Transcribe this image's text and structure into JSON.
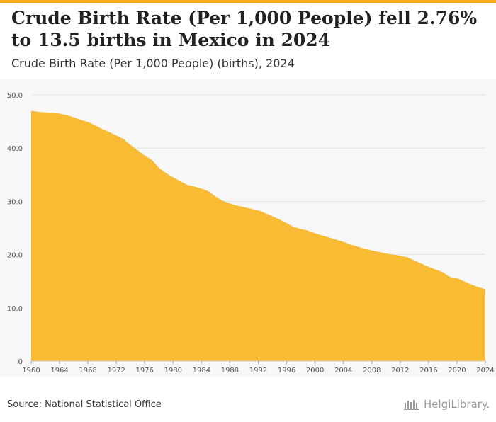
{
  "header": {
    "title": "Crude Birth Rate (Per 1,000 People) fell 2.76% to 13.5 births in Mexico in 2024",
    "subtitle": "Crude Birth Rate (Per 1,000 People) (births), 2024"
  },
  "footer": {
    "source": "Source: National Statistical Office",
    "logo_text": "HelgiLibrary."
  },
  "colors": {
    "accent": "#f5a623",
    "area_fill": "#f9bb33",
    "plot_background": "#f8f8f8",
    "grid": "#e4e4e4"
  },
  "chart_data": {
    "type": "area",
    "title": "Crude Birth Rate (Per 1,000 People) (births), 2024",
    "xlabel": "",
    "ylabel": "",
    "ylim": [
      0,
      50
    ],
    "xlim": [
      1960,
      2024
    ],
    "grid": true,
    "legend": "none",
    "y_ticks": [
      "0",
      "10.0",
      "20.0",
      "30.0",
      "40.0",
      "50.0"
    ],
    "x_ticks": [
      "1960",
      "1964",
      "1968",
      "1972",
      "1976",
      "1980",
      "1984",
      "1988",
      "1992",
      "1996",
      "2000",
      "2004",
      "2008",
      "2012",
      "2016",
      "2020",
      "2024"
    ],
    "x": [
      1960,
      1961,
      1962,
      1963,
      1964,
      1965,
      1966,
      1967,
      1968,
      1969,
      1970,
      1971,
      1972,
      1973,
      1974,
      1975,
      1976,
      1977,
      1978,
      1979,
      1980,
      1981,
      1982,
      1983,
      1984,
      1985,
      1986,
      1987,
      1988,
      1989,
      1990,
      1991,
      1992,
      1993,
      1994,
      1995,
      1996,
      1997,
      1998,
      1999,
      2000,
      2001,
      2002,
      2003,
      2004,
      2005,
      2006,
      2007,
      2008,
      2009,
      2010,
      2011,
      2012,
      2013,
      2014,
      2015,
      2016,
      2017,
      2018,
      2019,
      2020,
      2021,
      2022,
      2023,
      2024
    ],
    "values": [
      47.0,
      46.8,
      46.7,
      46.6,
      46.5,
      46.2,
      45.8,
      45.3,
      44.9,
      44.3,
      43.6,
      43.0,
      42.4,
      41.7,
      40.6,
      39.6,
      38.6,
      37.8,
      36.3,
      35.3,
      34.5,
      33.8,
      33.1,
      32.8,
      32.4,
      31.9,
      30.9,
      30.1,
      29.6,
      29.2,
      28.9,
      28.6,
      28.3,
      27.8,
      27.2,
      26.6,
      25.9,
      25.2,
      24.8,
      24.5,
      24.0,
      23.6,
      23.2,
      22.8,
      22.4,
      21.9,
      21.5,
      21.1,
      20.8,
      20.5,
      20.2,
      20.0,
      19.8,
      19.5,
      18.9,
      18.3,
      17.7,
      17.2,
      16.7,
      15.8,
      15.6,
      15.0,
      14.4,
      13.9,
      13.5
    ]
  }
}
